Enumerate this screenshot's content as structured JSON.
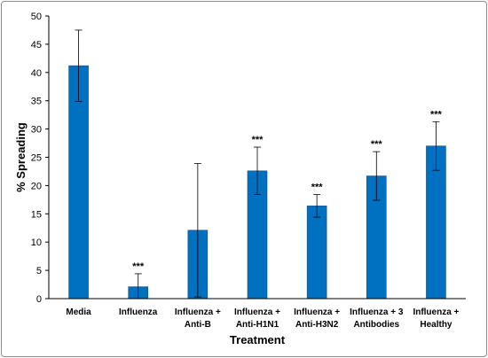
{
  "chart_data": {
    "type": "bar",
    "categories": [
      [
        "Media"
      ],
      [
        "Influenza"
      ],
      [
        "Influenza +",
        "Anti-B"
      ],
      [
        "Influenza +",
        "Anti-H1N1"
      ],
      [
        "Influenza +",
        "Anti-H3N2"
      ],
      [
        "Influenza + 3",
        "Antibodies"
      ],
      [
        "Influenza +",
        "Healthy"
      ]
    ],
    "values": [
      41.2,
      2.1,
      12.1,
      22.6,
      16.4,
      21.7,
      27.0
    ],
    "error": [
      6.3,
      2.3,
      11.8,
      4.2,
      2.0,
      4.3,
      4.3
    ],
    "significance": [
      "",
      "***",
      "",
      "***",
      "***",
      "***",
      "***"
    ],
    "title": "",
    "xlabel": "Treatment",
    "ylabel": "% Spreading",
    "ylim": [
      0,
      50
    ],
    "yticks": [
      0,
      5,
      10,
      15,
      20,
      25,
      30,
      35,
      40,
      45,
      50
    ],
    "grid": false,
    "bar_color": "#0070c0"
  }
}
